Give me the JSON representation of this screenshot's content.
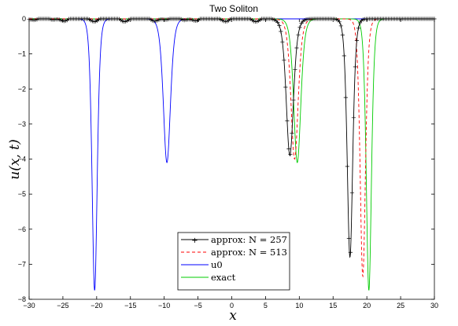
{
  "chart_data": {
    "type": "line",
    "title": "Two Soliton",
    "xlabel": "x",
    "ylabel": "u(x, t)",
    "xlim": [
      -30,
      30
    ],
    "ylim": [
      -8,
      0
    ],
    "xticks": [
      "−30",
      "−25",
      "−20",
      "−15",
      "−10",
      "−5",
      "0",
      "5",
      "10",
      "15",
      "20",
      "25",
      "30"
    ],
    "yticks": [
      "0",
      "−1",
      "−2",
      "−3",
      "−4",
      "−5",
      "−6",
      "−7",
      "−8"
    ],
    "grid": false,
    "legend_position": "bottom-center",
    "series": [
      {
        "name": "approx: N = 257",
        "color": "#000000",
        "style": "solid-plus-markers",
        "solitons": [
          {
            "center": 8.6,
            "amplitude": 3.9
          },
          {
            "center": 17.5,
            "amplitude": 6.8
          }
        ],
        "ripple": {
          "amplitude": 0.05,
          "range": [
            -30,
            6
          ]
        }
      },
      {
        "name": "approx: N = 513",
        "color": "#ff0000",
        "style": "dashed",
        "solitons": [
          {
            "center": 9.3,
            "amplitude": 4.0
          },
          {
            "center": 19.4,
            "amplitude": 7.35
          }
        ]
      },
      {
        "name": "u0",
        "color": "#0000ff",
        "style": "solid",
        "solitons": [
          {
            "center": -20.3,
            "amplitude": 7.75
          },
          {
            "center": -9.6,
            "amplitude": 4.1
          }
        ]
      },
      {
        "name": "exact",
        "color": "#00cc00",
        "style": "solid",
        "solitons": [
          {
            "center": 9.7,
            "amplitude": 4.1
          },
          {
            "center": 20.3,
            "amplitude": 7.75
          }
        ]
      }
    ]
  }
}
